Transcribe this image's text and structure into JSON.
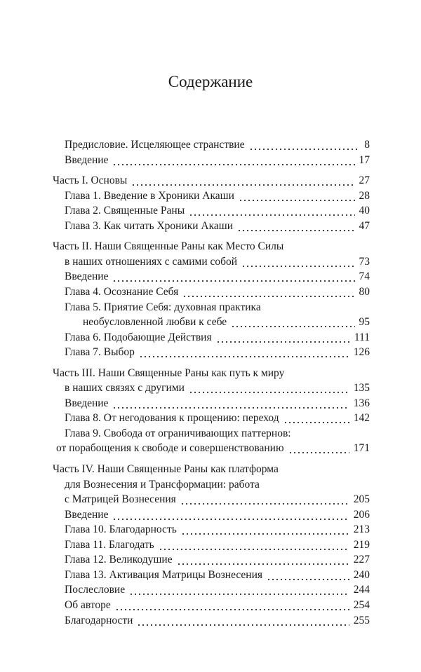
{
  "title": "Содержание",
  "sections": [
    {
      "entries": [
        {
          "lines": [
            "Предисловие. Исцеляющее странствие"
          ],
          "page": "8"
        },
        {
          "lines": [
            "Введение"
          ],
          "page": "17"
        }
      ]
    },
    {
      "entries": [
        {
          "lines": [
            "Часть I. Основы"
          ],
          "page": "27"
        },
        {
          "lines": [
            "Глава 1. Введение в Хроники Акаши"
          ],
          "page": "28"
        },
        {
          "lines": [
            "Глава 2. Священные Раны"
          ],
          "page": "40"
        },
        {
          "lines": [
            "Глава 3. Как читать Хроники Акаши"
          ],
          "page": "47"
        }
      ]
    },
    {
      "entries": [
        {
          "lines": [
            "Часть II. Наши Священные Раны как Место Силы",
            "в наших отношениях с самими собой"
          ],
          "page": "73"
        },
        {
          "lines": [
            "Введение"
          ],
          "page": "74"
        },
        {
          "lines": [
            "Глава 4. Осознание Себя"
          ],
          "page": "80"
        },
        {
          "lines": [
            "Глава 5. Приятие Себя: духовная практика",
            "необусловленной любви к себе"
          ],
          "page": "95"
        },
        {
          "lines": [
            "Глава 6. Подобающие Действия"
          ],
          "page": "111"
        },
        {
          "lines": [
            "Глава 7. Выбор"
          ],
          "page": "126"
        }
      ]
    },
    {
      "entries": [
        {
          "lines": [
            "Часть III. Наши Священные Раны как путь к миру",
            "в наших связях с другими"
          ],
          "page": "135"
        },
        {
          "lines": [
            "Введение"
          ],
          "page": "136"
        },
        {
          "lines": [
            "Глава 8. От негодования к прощению: переход"
          ],
          "page": "142"
        },
        {
          "lines": [
            "Глава 9. Свобода от ограничивающих паттернов:",
            "от порабощения к свободе и совершенствованию"
          ],
          "page": "171"
        }
      ]
    },
    {
      "entries": [
        {
          "lines": [
            "Часть IV. Наши Священные Раны как платформа",
            "для Вознесения и Трансформации: работа",
            "с Матрицей Вознесения"
          ],
          "page": "205"
        },
        {
          "lines": [
            "Введение"
          ],
          "page": "206"
        },
        {
          "lines": [
            "Глава 10. Благодарность"
          ],
          "page": "213"
        },
        {
          "lines": [
            "Глава 11. Благодать"
          ],
          "page": "219"
        },
        {
          "lines": [
            "Глава 12. Великодушие"
          ],
          "page": "227"
        },
        {
          "lines": [
            "Глава 13. Активация Матрицы Вознесения"
          ],
          "page": "240"
        },
        {
          "lines": [
            "Послесловие"
          ],
          "page": "244"
        },
        {
          "lines": [
            "Об авторе"
          ],
          "page": "254"
        },
        {
          "lines": [
            "Благодарности"
          ],
          "page": "255"
        }
      ]
    }
  ]
}
